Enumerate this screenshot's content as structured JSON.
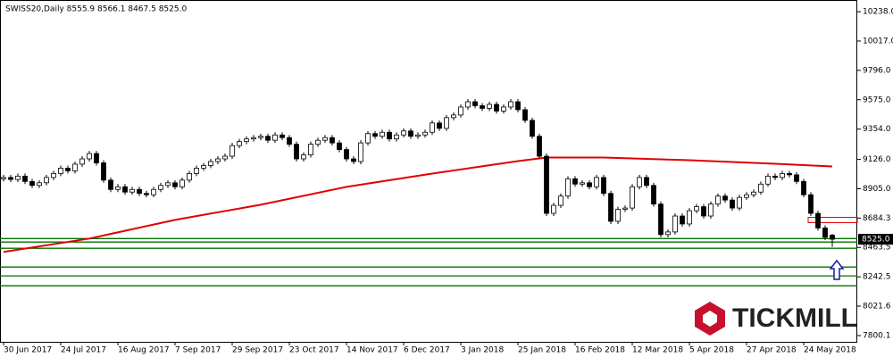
{
  "chart_data": {
    "type": "candlestick",
    "title": "SWISS20,Daily  8555.9 8566.1 8467.5 8525.0",
    "categories": [
      "30 Jun 2017",
      null,
      null,
      null,
      null,
      null,
      null,
      null,
      "24 Jul 2017",
      null,
      null,
      null,
      null,
      null,
      null,
      null,
      "16 Aug 2017",
      null,
      null,
      null,
      null,
      null,
      null,
      null,
      "7 Sep 2017",
      null,
      null,
      null,
      null,
      null,
      null,
      null,
      "29 Sep 2017",
      null,
      null,
      null,
      null,
      null,
      null,
      null,
      "23 Oct 2017",
      null,
      null,
      null,
      null,
      null,
      null,
      null,
      "14 Nov 2017",
      null,
      null,
      null,
      null,
      null,
      null,
      null,
      "6 Dec 2017",
      null,
      null,
      null,
      null,
      null,
      null,
      null,
      "3 Jan 2018",
      null,
      null,
      null,
      null,
      null,
      null,
      null,
      "25 Jan 2018",
      null,
      null,
      null,
      null,
      null,
      null,
      null,
      "16 Feb 2018",
      null,
      null,
      null,
      null,
      null,
      null,
      null,
      "12 Mar 2018",
      null,
      null,
      null,
      null,
      null,
      null,
      null,
      "5 Apr 2018",
      null,
      null,
      null,
      null,
      null,
      null,
      null,
      "27 Apr 2018",
      null,
      null,
      null,
      null,
      null,
      null,
      null,
      "24 May 2018",
      null,
      null,
      null,
      null
    ],
    "open": [
      8980,
      8990,
      8975,
      9000,
      8960,
      8930,
      8950,
      8990,
      9020,
      9060,
      9040,
      9090,
      9130,
      9170,
      9100,
      8970,
      8900,
      8920,
      8880,
      8900,
      8870,
      8860,
      8900,
      8930,
      8950,
      8920,
      8970,
      9020,
      9060,
      9080,
      9110,
      9130,
      9150,
      9230,
      9260,
      9280,
      9290,
      9300,
      9270,
      9310,
      9290,
      9240,
      9130,
      9160,
      9240,
      9270,
      9290,
      9250,
      9200,
      9130,
      9110,
      9250,
      9320,
      9300,
      9330,
      9280,
      9310,
      9340,
      9300,
      9310,
      9330,
      9400,
      9360,
      9440,
      9460,
      9520,
      9560,
      9530,
      9510,
      9540,
      9490,
      9520,
      9560,
      9500,
      9420,
      9300,
      9150,
      8720,
      8780,
      8850,
      8980,
      8940,
      8950,
      8920,
      8990,
      8870,
      8660,
      8750,
      8760,
      8920,
      8990,
      8930,
      8790,
      8560,
      8580,
      8700,
      8640,
      8740,
      8770,
      8700,
      8790,
      8850,
      8820,
      8760,
      8840,
      8860,
      8880,
      8940,
      9000,
      8990,
      9020,
      9010,
      8960,
      8860,
      8720,
      8610,
      8555.9
    ],
    "high": [
      9010,
      9010,
      9020,
      9020,
      8980,
      8970,
      9010,
      9040,
      9080,
      9080,
      9110,
      9150,
      9190,
      9190,
      9120,
      8990,
      8940,
      8940,
      8920,
      8920,
      8890,
      8920,
      8950,
      8970,
      8970,
      8990,
      9040,
      9080,
      9100,
      9130,
      9150,
      9170,
      9250,
      9280,
      9300,
      9310,
      9320,
      9320,
      9330,
      9330,
      9310,
      9260,
      9180,
      9260,
      9290,
      9310,
      9310,
      9270,
      9220,
      9150,
      9270,
      9340,
      9340,
      9350,
      9350,
      9330,
      9360,
      9360,
      9330,
      9350,
      9420,
      9420,
      9460,
      9480,
      9540,
      9580,
      9580,
      9550,
      9560,
      9560,
      9540,
      9580,
      9580,
      9520,
      9440,
      9320,
      9170,
      8800,
      8870,
      9000,
      9000,
      8970,
      8970,
      9010,
      9010,
      8890,
      8770,
      8780,
      8940,
      9010,
      9010,
      8950,
      8810,
      8600,
      8720,
      8720,
      8760,
      8790,
      8790,
      8810,
      8870,
      8870,
      8840,
      8860,
      8880,
      8900,
      8960,
      9020,
      9020,
      9040,
      9040,
      9030,
      8980,
      8880,
      8740,
      8630,
      8566.1
    ],
    "low": [
      8960,
      8955,
      8955,
      8940,
      8910,
      8910,
      8930,
      8970,
      9000,
      9020,
      9020,
      9070,
      9110,
      9080,
      8950,
      8880,
      8880,
      8860,
      8860,
      8850,
      8840,
      8840,
      8880,
      8910,
      8900,
      8900,
      8950,
      9000,
      9040,
      9060,
      9090,
      9110,
      9130,
      9210,
      9240,
      9260,
      9270,
      9250,
      9250,
      9270,
      9220,
      9110,
      9110,
      9140,
      9220,
      9250,
      9230,
      9180,
      9110,
      9090,
      9090,
      9230,
      9280,
      9280,
      9260,
      9260,
      9290,
      9280,
      9280,
      9290,
      9310,
      9340,
      9340,
      9420,
      9440,
      9500,
      9510,
      9490,
      9490,
      9470,
      9470,
      9500,
      9480,
      9400,
      9280,
      9130,
      8700,
      8700,
      8760,
      8830,
      8920,
      8920,
      8900,
      8900,
      8850,
      8640,
      8640,
      8730,
      8740,
      8900,
      8910,
      8770,
      8540,
      8540,
      8560,
      8620,
      8620,
      8720,
      8680,
      8680,
      8770,
      8800,
      8740,
      8740,
      8820,
      8840,
      8860,
      8920,
      8970,
      8970,
      8990,
      8940,
      8840,
      8700,
      8590,
      8520,
      8467.5
    ],
    "close": [
      8990,
      8975,
      9000,
      8960,
      8930,
      8950,
      8990,
      9020,
      9060,
      9040,
      9090,
      9130,
      9170,
      9100,
      8970,
      8900,
      8920,
      8880,
      8900,
      8870,
      8860,
      8900,
      8930,
      8950,
      8920,
      8970,
      9020,
      9060,
      9080,
      9110,
      9130,
      9150,
      9230,
      9260,
      9280,
      9290,
      9300,
      9270,
      9310,
      9290,
      9240,
      9130,
      9160,
      9240,
      9270,
      9290,
      9250,
      9200,
      9130,
      9110,
      9250,
      9320,
      9300,
      9330,
      9280,
      9310,
      9340,
      9300,
      9310,
      9330,
      9400,
      9360,
      9440,
      9460,
      9520,
      9560,
      9530,
      9510,
      9540,
      9490,
      9520,
      9560,
      9500,
      9420,
      9300,
      9150,
      8720,
      8780,
      8850,
      8980,
      8940,
      8950,
      8920,
      8990,
      8870,
      8660,
      8750,
      8760,
      8920,
      8990,
      8930,
      8790,
      8560,
      8580,
      8700,
      8640,
      8740,
      8770,
      8700,
      8790,
      8850,
      8820,
      8760,
      8840,
      8860,
      8880,
      8940,
      9000,
      8990,
      9020,
      9010,
      8960,
      8860,
      8720,
      8610,
      8540,
      8525.0
    ],
    "close_label": "8525.0",
    "moving_average": {
      "color": "#e00000",
      "x": [
        0,
        12,
        24,
        36,
        48,
        60,
        72,
        76,
        84,
        96,
        108,
        116
      ],
      "values": [
        8430,
        8530,
        8671,
        8785,
        8919,
        9019,
        9113,
        9140,
        9140,
        9120,
        9093,
        9073
      ]
    },
    "levels": [
      8530,
      8504,
      8457,
      8316,
      8249,
      8175
    ],
    "level_color": "#007000",
    "zone": [
      8650,
      8690
    ],
    "zone_color": "#e00000",
    "ylim": [
      7753,
      10319
    ],
    "yticks": [
      {
        "value": 10238,
        "label": "10238.0"
      },
      {
        "value": 10017,
        "label": "10017.0"
      },
      {
        "value": 9796,
        "label": "9796.0"
      },
      {
        "value": 9575,
        "label": "9575.0"
      },
      {
        "value": 9354,
        "label": "9354.0"
      },
      {
        "value": 9126,
        "label": "9126.0"
      },
      {
        "value": 8905,
        "label": "8905.0"
      },
      8684.3,
      8463.5,
      8242.5,
      8021.6,
      7800.1
    ],
    "logo": "TICKMILL"
  }
}
